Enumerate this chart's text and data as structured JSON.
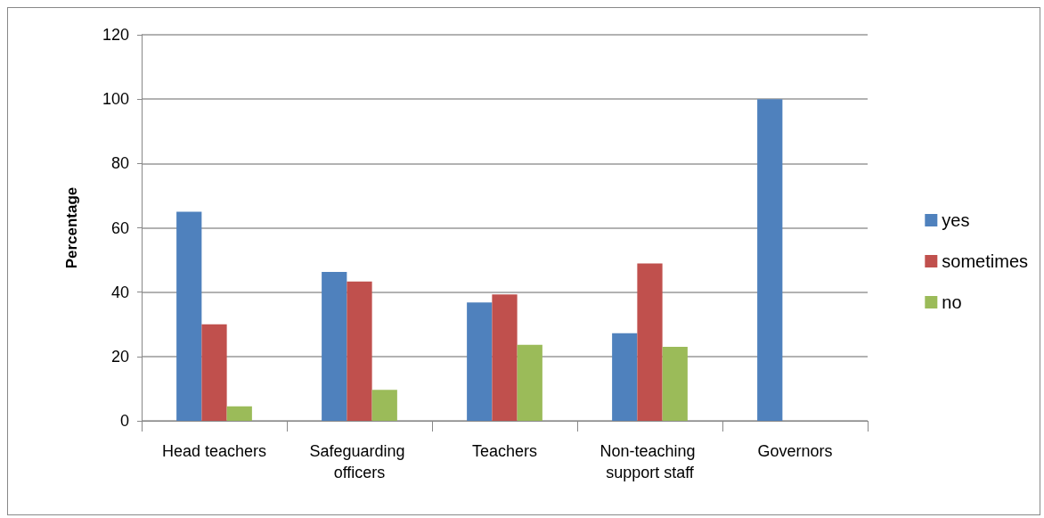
{
  "chart_data": {
    "type": "bar",
    "ylabel": "Percentage",
    "categories": [
      "Head teachers",
      "Safeguarding officers",
      "Teachers",
      "Non-teaching support staff",
      "Governors"
    ],
    "series": [
      {
        "name": "yes",
        "color": "#4f81bd",
        "values": [
          65,
          46.3,
          36.8,
          27.2,
          100
        ]
      },
      {
        "name": "sometimes",
        "color": "#c0504d",
        "values": [
          30,
          43.3,
          39.3,
          48.9,
          0
        ]
      },
      {
        "name": "no",
        "color": "#9bbb59",
        "values": [
          4.5,
          9.6,
          23.6,
          23,
          0
        ]
      }
    ],
    "ylim": [
      0,
      120
    ],
    "yticks": [
      0,
      20,
      40,
      60,
      80,
      100,
      120
    ],
    "grid": "y",
    "legend": "right"
  }
}
